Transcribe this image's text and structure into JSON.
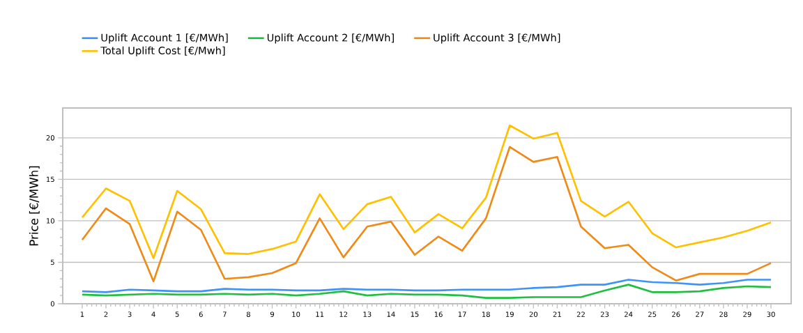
{
  "chart_data": {
    "type": "line",
    "ylabel": "Price [€/MWh]",
    "categories": [
      "1",
      "2",
      "3",
      "4",
      "5",
      "6",
      "7",
      "8",
      "9",
      "10",
      "11",
      "12",
      "13",
      "14",
      "15",
      "16",
      "17",
      "18",
      "19",
      "20",
      "21",
      "22",
      "23",
      "24",
      "25",
      "26",
      "27",
      "28",
      "29",
      "30"
    ],
    "series": [
      {
        "name": "Uplift Account 1 [€/MWh]",
        "color": "#3d94f6",
        "values": [
          1.5,
          1.4,
          1.7,
          1.6,
          1.5,
          1.5,
          1.8,
          1.7,
          1.7,
          1.6,
          1.6,
          1.8,
          1.7,
          1.7,
          1.6,
          1.6,
          1.7,
          1.7,
          1.7,
          1.9,
          2.0,
          2.3,
          2.3,
          2.9,
          2.6,
          2.5,
          2.3,
          2.5,
          2.9,
          2.9
        ]
      },
      {
        "name": "Uplift Account 2 [€/MWh]",
        "color": "#1fbf3f",
        "values": [
          1.1,
          1.0,
          1.1,
          1.2,
          1.1,
          1.1,
          1.2,
          1.1,
          1.2,
          1.0,
          1.2,
          1.5,
          1.0,
          1.2,
          1.1,
          1.1,
          1.0,
          0.7,
          0.7,
          0.8,
          0.8,
          0.8,
          1.6,
          2.3,
          1.4,
          1.4,
          1.5,
          1.9,
          2.1,
          2.0
        ]
      },
      {
        "name": "Uplift Account 3 [€/MWh]",
        "color": "#ef8a17",
        "values": [
          7.7,
          11.5,
          9.6,
          2.7,
          11.1,
          8.9,
          3.0,
          3.2,
          3.7,
          4.9,
          10.3,
          5.6,
          9.3,
          9.9,
          5.9,
          8.1,
          6.4,
          10.3,
          18.9,
          17.1,
          17.7,
          9.3,
          6.7,
          7.1,
          4.4,
          2.8,
          3.6,
          3.6,
          3.6,
          4.9
        ]
      },
      {
        "name": "Total Uplift Cost [€/Mwh]",
        "color": "#ffc000",
        "values": [
          10.4,
          13.9,
          12.4,
          5.5,
          13.6,
          11.4,
          6.1,
          6.0,
          6.6,
          7.5,
          13.2,
          9.0,
          12.0,
          12.9,
          8.6,
          10.8,
          9.1,
          12.8,
          21.5,
          19.9,
          20.6,
          12.4,
          10.5,
          12.3,
          8.5,
          6.8,
          7.4,
          8.0,
          8.8,
          9.8
        ]
      }
    ],
    "ylim": [
      0,
      23.6
    ],
    "yticks": [
      0,
      5,
      10,
      15,
      20
    ],
    "grid": "y",
    "legend": "top",
    "marker": "none",
    "line_style": "solid"
  }
}
